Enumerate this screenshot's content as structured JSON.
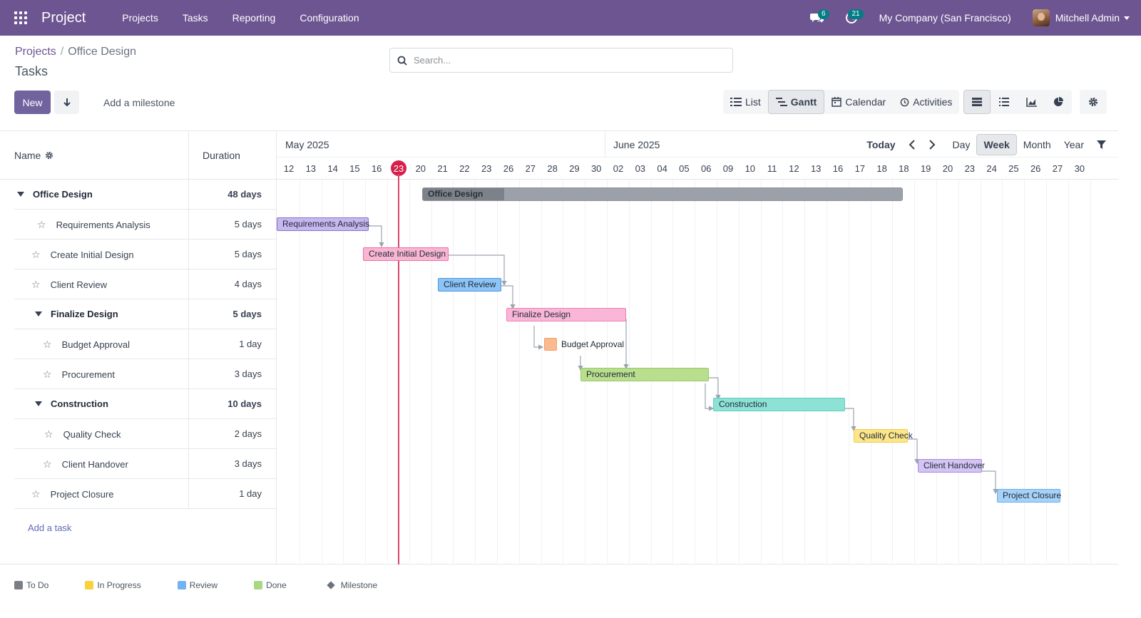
{
  "navbar": {
    "brand": "Project",
    "menu": [
      "Projects",
      "Tasks",
      "Reporting",
      "Configuration"
    ],
    "messages_count": "6",
    "activities_count": "21",
    "company": "My Company (San Francisco)",
    "user": "Mitchell Admin"
  },
  "breadcrumb": {
    "parent": "Projects",
    "separator": "/",
    "current": "Office Design"
  },
  "page_title": "Tasks",
  "search": {
    "placeholder": "Search..."
  },
  "toolbar": {
    "new_label": "New",
    "milestone_label": "Add a milestone"
  },
  "views": [
    "List",
    "Gantt",
    "Calendar",
    "Activities"
  ],
  "active_view": "Gantt",
  "gantt": {
    "header": {
      "name": "Name",
      "duration": "Duration"
    },
    "months": [
      "May 2025",
      "June 2025"
    ],
    "days": [
      "12",
      "13",
      "14",
      "15",
      "16",
      "23",
      "20",
      "21",
      "22",
      "23",
      "26",
      "27",
      "28",
      "29",
      "30",
      "02",
      "03",
      "04",
      "05",
      "06",
      "09",
      "10",
      "11",
      "12",
      "13",
      "16",
      "17",
      "18",
      "18",
      "19",
      "20",
      "23",
      "24",
      "25",
      "26",
      "27",
      "30"
    ],
    "today_index": 5,
    "timenav": {
      "today": "Today",
      "scales": [
        "Day",
        "Week",
        "Month",
        "Year"
      ],
      "active_scale": "Week"
    },
    "rows": [
      {
        "name": "Office Design",
        "duration": "48 days",
        "type": "group",
        "level": 0
      },
      {
        "name": "Requirements Analysis",
        "duration": "5 days",
        "type": "task",
        "level": 1
      },
      {
        "name": "Create Initial Design",
        "duration": "5 days",
        "type": "task",
        "level": 0
      },
      {
        "name": "Client Review",
        "duration": "4 days",
        "type": "task",
        "level": 0
      },
      {
        "name": "Finalize Design",
        "duration": "5 days",
        "type": "group",
        "level": 1
      },
      {
        "name": "Budget Approval",
        "duration": "1 day",
        "type": "task",
        "level": 2
      },
      {
        "name": "Procurement",
        "duration": "3 days",
        "type": "task",
        "level": 2
      },
      {
        "name": "Construction",
        "duration": "10 days",
        "type": "group",
        "level": 1
      },
      {
        "name": "Quality Check",
        "duration": "2 days",
        "type": "task",
        "level": 2
      },
      {
        "name": "Client Handover",
        "duration": "3 days",
        "type": "task",
        "level": 2
      },
      {
        "name": "Project Closure",
        "duration": "1 day",
        "type": "task",
        "level": 0
      }
    ],
    "add_task": "Add a task",
    "bars": [
      {
        "label": "Office Design",
        "color": "#9ca0a8",
        "border": "#8d9199",
        "progress": 0.17
      },
      {
        "label": "Requirements Analysis",
        "color": "#c7b7ef",
        "border": "#8a6fd1"
      },
      {
        "label": "Create Initial Design",
        "color": "#f9b6d2",
        "border": "#ec6fa4"
      },
      {
        "label": "Client Review",
        "color": "#8cc4f6",
        "border": "#4a98e0"
      },
      {
        "label": "Finalize Design",
        "color": "#f9b6d6",
        "border": "#ef7fb2"
      },
      {
        "label": "Budget Approval",
        "color": "#fbb98f",
        "border": "#f59e6b"
      },
      {
        "label": "Procurement",
        "color": "#b9df8e",
        "border": "#96c966"
      },
      {
        "label": "Construction",
        "color": "#8de2d5",
        "border": "#5ccdbb"
      },
      {
        "label": "Quality Check",
        "color": "#fde68a",
        "border": "#f2c94c"
      },
      {
        "label": "Client Handover",
        "color": "#d3c4f3",
        "border": "#a58be0"
      },
      {
        "label": "Project Closure",
        "color": "#a7d2f8",
        "border": "#64aeec"
      }
    ]
  },
  "legend": [
    {
      "label": "To Do",
      "color": "#7a7f87"
    },
    {
      "label": "In Progress",
      "color": "#f8d23a"
    },
    {
      "label": "Review",
      "color": "#74b3f2"
    },
    {
      "label": "Done",
      "color": "#a8d882"
    },
    {
      "label": "Milestone",
      "color": "#6b7280"
    }
  ]
}
